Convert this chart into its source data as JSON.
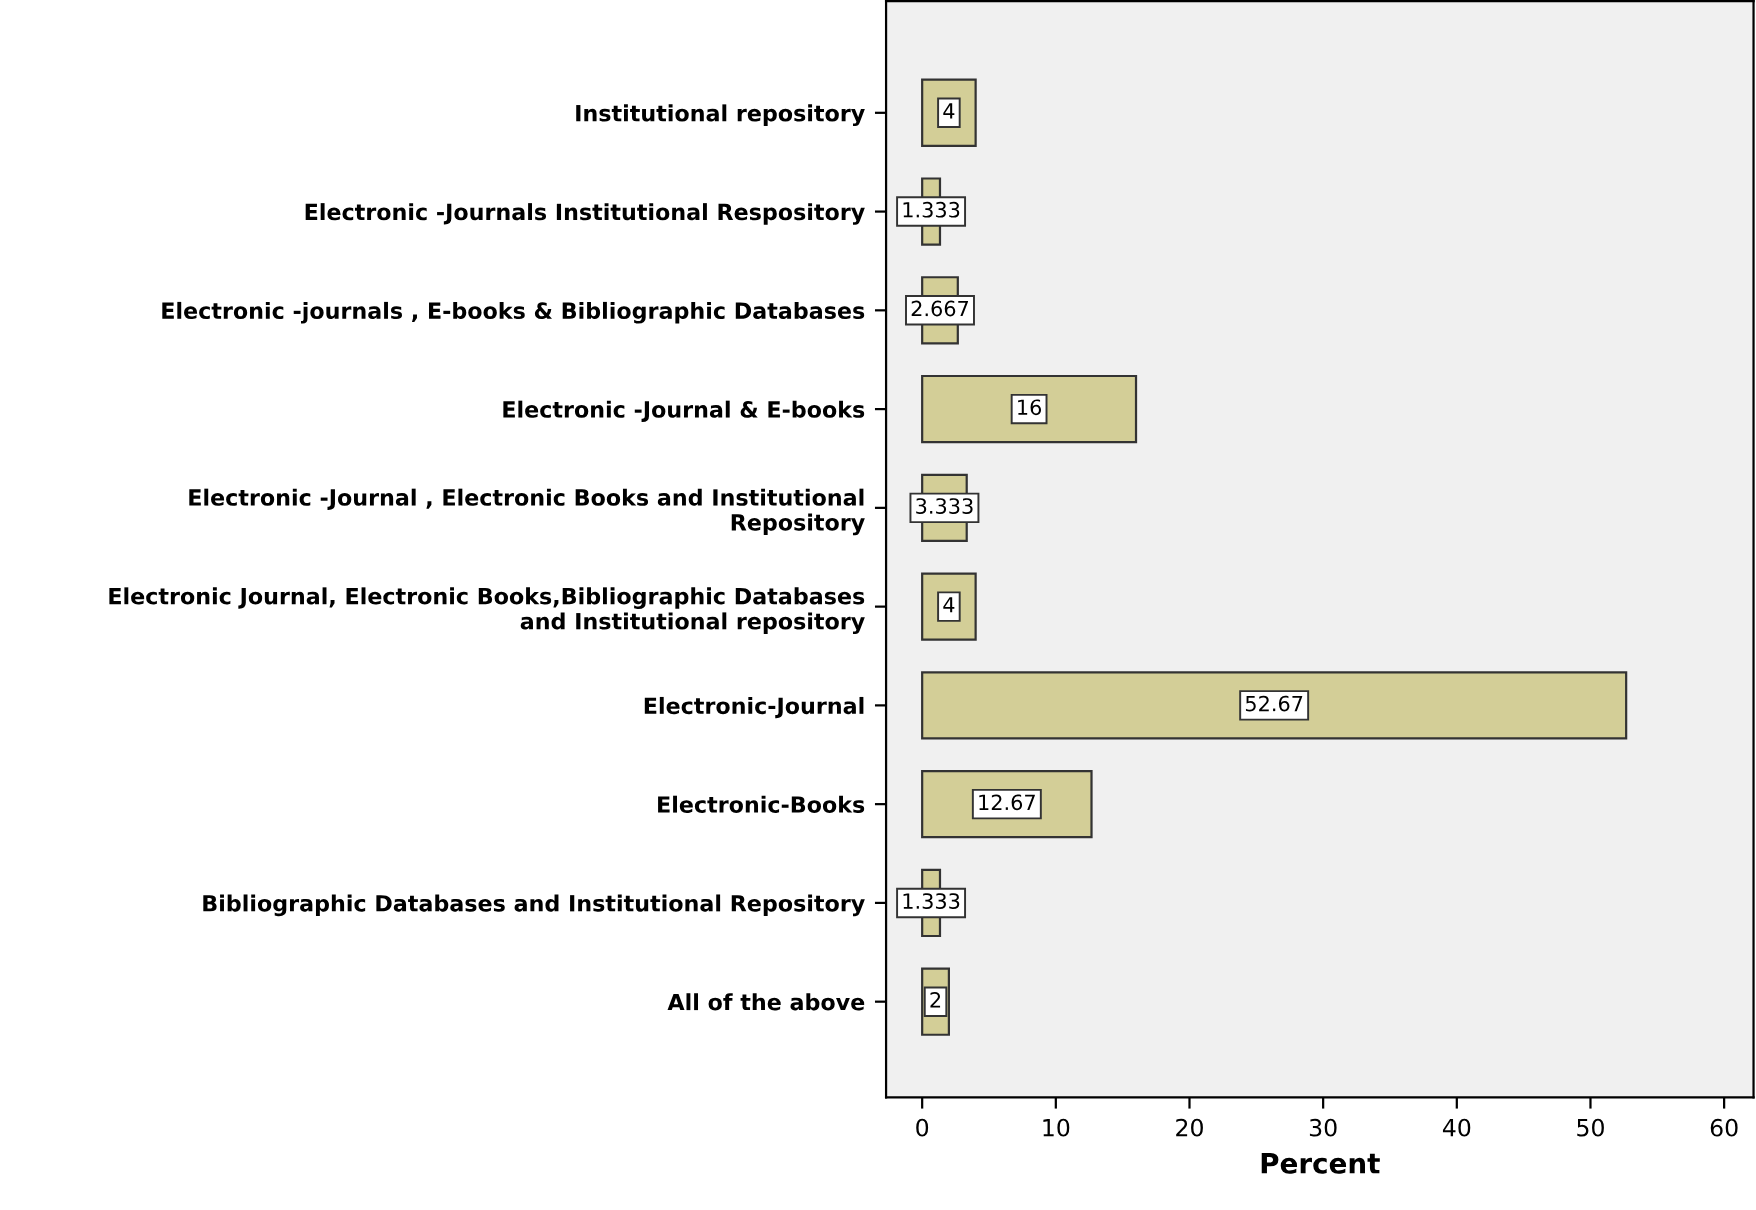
{
  "chart_data": {
    "type": "bar",
    "orientation": "horizontal",
    "xlabel": "Percent",
    "categories": [
      "Institutional repository",
      "Electronic -Journals Institutional Respository",
      "Electronic -journals , E-books & Bibliographic Databases",
      "Electronic -Journal & E-books",
      "Electronic -Journal , Electronic Books and Institutional\nRepository",
      "Electronic Journal, Electronic Books,Bibliographic Databases\nand Institutional repository",
      "Electronic-Journal",
      "Electronic-Books",
      "Bibliographic Databases and Institutional Repository",
      "All of the above"
    ],
    "values": [
      4,
      1.333,
      2.667,
      16,
      3.333,
      4,
      52.67,
      12.67,
      1.333,
      2
    ],
    "color": "#d3ce97",
    "xlim": [
      -2.7,
      62.2
    ],
    "xticks": [
      0,
      10,
      20,
      30,
      40,
      50,
      60
    ],
    "data_labels": true,
    "grid": false,
    "legend": false
  }
}
